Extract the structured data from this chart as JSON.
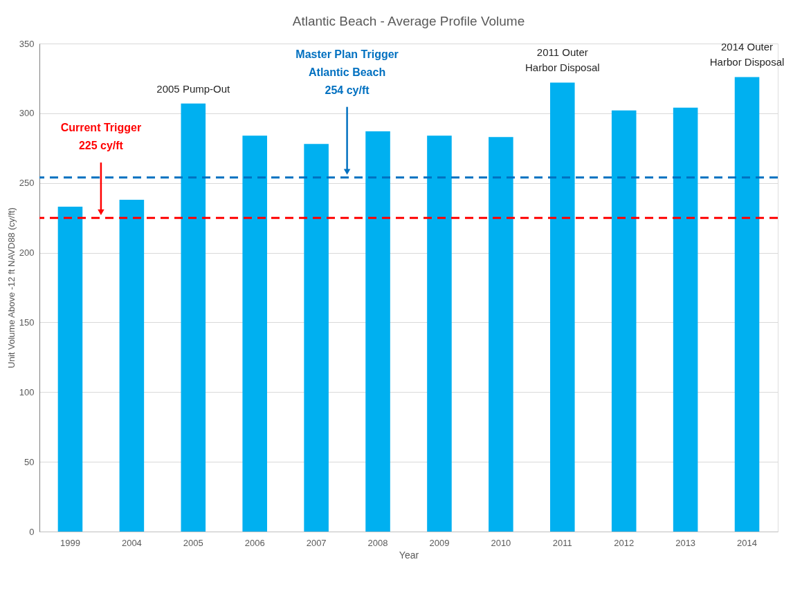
{
  "chart_data": {
    "type": "bar",
    "title": "Atlantic Beach - Average Profile Volume",
    "xlabel": "Year",
    "ylabel": "Unit Volume Above -12 ft NAVD88 (cy/ft)",
    "categories": [
      "1999",
      "2004",
      "2005",
      "2006",
      "2007",
      "2008",
      "2009",
      "2010",
      "2011",
      "2012",
      "2013",
      "2014"
    ],
    "values": [
      233,
      238,
      307,
      284,
      278,
      287,
      284,
      283,
      322,
      302,
      304,
      326
    ],
    "color": "#00b0f0",
    "ylim": [
      0,
      350
    ],
    "yticks": [
      0,
      50,
      100,
      150,
      200,
      250,
      300,
      350
    ],
    "grid": "y",
    "ref_lines": [
      {
        "axis": "y",
        "value": 225,
        "label": "Current Trigger\n225 cy/ft",
        "color": "#ff0000",
        "line_style": "dashed"
      },
      {
        "axis": "y",
        "value": 254,
        "label": "Master Plan Trigger\nAtlantic Beach\n254 cy/ft",
        "color": "#0070c0",
        "line_style": "dashed"
      }
    ],
    "annotations": [
      {
        "text": "2005 Pump-Out",
        "x": "2005",
        "y": 307
      },
      {
        "text": "2011 Outer\nHarbor Disposal",
        "x": "2011",
        "y": 322
      },
      {
        "text": "2014 Outer\nHarbor Disposal",
        "x": "2014",
        "y": 326
      }
    ]
  }
}
